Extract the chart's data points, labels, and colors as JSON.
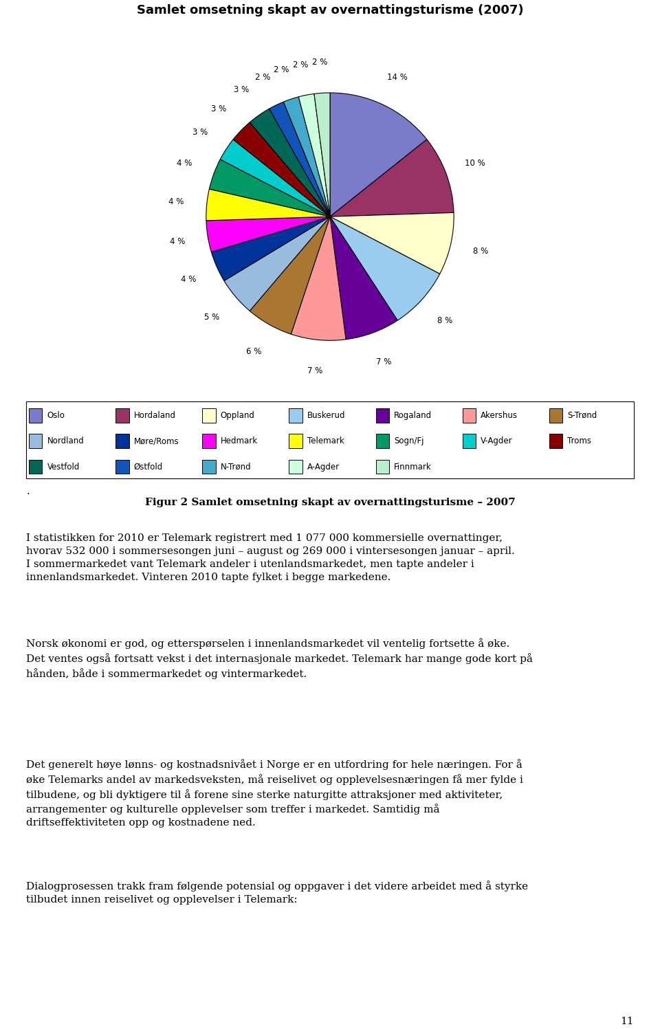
{
  "title": "Samlet omsetning skapt av overnattingsturisme (2007)",
  "pie_values": [
    14,
    10,
    8,
    8,
    7,
    7,
    6,
    5,
    4,
    4,
    4,
    4,
    3,
    3,
    3,
    2,
    2,
    2,
    2
  ],
  "pie_colors": [
    "#7B7BCC",
    "#993366",
    "#FFFFCC",
    "#99CCEE",
    "#660099",
    "#FF9999",
    "#AA7733",
    "#99BBDD",
    "#003399",
    "#FF00FF",
    "#FFFF00",
    "#009966",
    "#00CCCC",
    "#880000",
    "#006655",
    "#1155BB",
    "#44AACC",
    "#CCFFDD",
    "#BBEECC"
  ],
  "legend": [
    [
      "Oslo",
      "#7B7BCC"
    ],
    [
      "Hordaland",
      "#993366"
    ],
    [
      "Oppland",
      "#FFFFCC"
    ],
    [
      "Buskerud",
      "#99CCEE"
    ],
    [
      "Rogaland",
      "#660099"
    ],
    [
      "Akershus",
      "#FF9999"
    ],
    [
      "S-Trønd",
      "#AA7733"
    ],
    [
      "Nordland",
      "#99BBDD"
    ],
    [
      "Møre/Roms",
      "#003399"
    ],
    [
      "Hedmark",
      "#FF00FF"
    ],
    [
      "Telemark",
      "#FFFF00"
    ],
    [
      "Sogn/Fj",
      "#009966"
    ],
    [
      "V-Agder",
      "#00CCCC"
    ],
    [
      "Troms",
      "#880000"
    ],
    [
      "Vestfold",
      "#006655"
    ],
    [
      "Østfold",
      "#1155BB"
    ],
    [
      "N-Trønd",
      "#44AACC"
    ],
    [
      "A-Agder",
      "#CCFFDD"
    ],
    [
      "Finnmark",
      "#BBEECC"
    ]
  ],
  "para1": "I statistikken for 2010 er Telemark registrert med 1 077 000 kommersielle overnattinger,\nhvorav 532 000 i sommersesongen juni – august og 269 000 i vintersesongen januar – april.\nI sommermarkedet vant Telemark andeler i utenlandsmarkedet, men tapte andeler i\ninnenlandsmarkedet. Vinteren 2010 tapte fylket i begge markedene.",
  "para2": "Norsk økonomi er god, og etterspørselen i innenlandsmarkedet vil ventelig fortsette å øke.\nDet ventes også fortsatt vekst i det internasjonale markedet. Telemark har mange gode kort på\nhånden, både i sommermarkedet og vintermarkedet.",
  "para3": "Det generelt høye lønns- og kostnadsnivået i Norge er en utfordring for hele næringen. For å\nøke Telemarks andel av markedsveksten, må reiselivet og opplevelsesnæringen få mer fylde i\ntilbudene, og bli dyktigere til å forene sine sterke naturgitte attraksjoner med aktiviteter,\narrangementer og kulturelle opplevelser som treffer i markedet. Samtidig må\ndriftseffektiviteten opp og kostnadene ned.",
  "para4": "Dialogprosessen trakk fram følgende potensial og oppgaver i det videre arbeidet med å styrke\ntilbudet innen reiselivet og opplevelser i Telemark:",
  "page_num": "11"
}
